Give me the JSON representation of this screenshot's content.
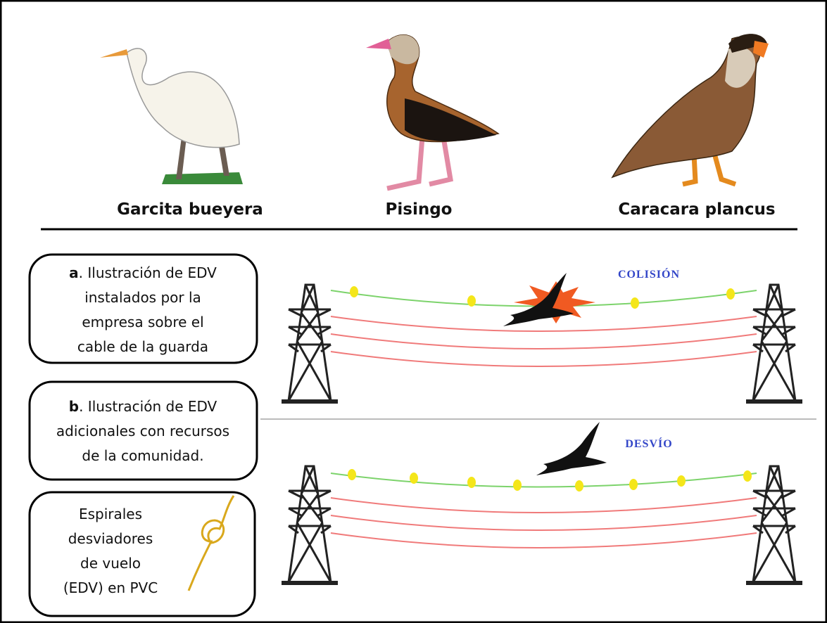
{
  "birds": [
    {
      "label": "Garcita bueyera"
    },
    {
      "label": "Pisingo"
    },
    {
      "label": "Caracara plancus"
    }
  ],
  "boxes": [
    {
      "marker": "a",
      "lines": [
        ". Ilustración de EDV",
        "instalados por la",
        "empresa sobre el",
        "cable de la guarda"
      ]
    },
    {
      "marker": "b",
      "lines": [
        ". Ilustración de EDV",
        "adicionales con recursos",
        "de la comunidad."
      ]
    },
    {
      "lines": [
        "Espirales",
        "desviadores",
        "de vuelo",
        "(EDV) en PVC"
      ]
    }
  ],
  "panels": [
    {
      "label": "COLISIÓN"
    },
    {
      "label": "DESVÍO"
    }
  ]
}
